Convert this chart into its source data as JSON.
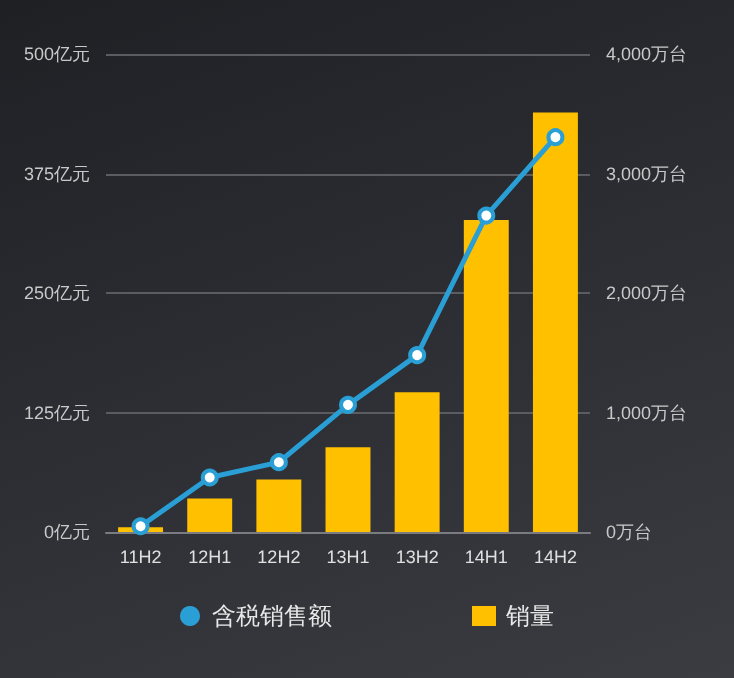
{
  "chart_data": {
    "type": "bar",
    "categories": [
      "11H2",
      "12H1",
      "12H2",
      "13H1",
      "13H2",
      "14H1",
      "14H2"
    ],
    "series": [
      {
        "name": "含税销售额",
        "type": "line",
        "axis": "y",
        "color": "#2a9fd6",
        "values": [
          6,
          57,
          73,
          133,
          185,
          331,
          413
        ]
      },
      {
        "name": "销量",
        "axis": "y2",
        "color": "#ffc000",
        "values": [
          40,
          280,
          440,
          710,
          1170,
          2610,
          3510
        ]
      }
    ],
    "ylim": [
      0,
      500
    ],
    "yticks": [
      {
        "value": 0,
        "label": "0亿元"
      },
      {
        "value": 125,
        "label": "125亿元"
      },
      {
        "value": 250,
        "label": "250亿元"
      },
      {
        "value": 375,
        "label": "375亿元"
      },
      {
        "value": 500,
        "label": "500亿元"
      }
    ],
    "y2lim": [
      0,
      4000
    ],
    "y2ticks": [
      {
        "value": 0,
        "label": "0万台"
      },
      {
        "value": 1000,
        "label": "1,000万台"
      },
      {
        "value": 2000,
        "label": "2,000万台"
      },
      {
        "value": 3000,
        "label": "3,000万台"
      },
      {
        "value": 4000,
        "label": "4,000万台"
      }
    ],
    "grid": "y",
    "legend": "bottom",
    "marker": "circle"
  }
}
